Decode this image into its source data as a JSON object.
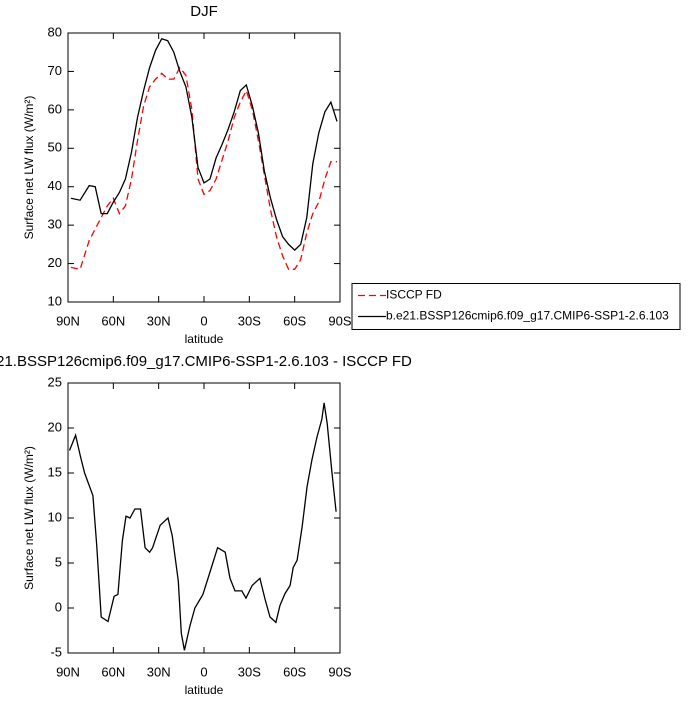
{
  "chart_data": [
    {
      "type": "line",
      "title": "DJF",
      "xlabel": "latitude",
      "ylabel": "Surface net LW flux (W/m²)",
      "xlim": [
        90,
        -90
      ],
      "ylim": [
        10,
        80
      ],
      "xticks": [
        {
          "value": 90,
          "label": "90N"
        },
        {
          "value": 60,
          "label": "60N"
        },
        {
          "value": 30,
          "label": "30N"
        },
        0,
        {
          "value": -30,
          "label": "30S"
        },
        {
          "value": -60,
          "label": "60S"
        },
        {
          "value": -90,
          "label": "90S"
        }
      ],
      "yticks": [
        10,
        20,
        30,
        40,
        50,
        60,
        70,
        80
      ],
      "x": [
        88,
        82,
        76,
        72,
        68,
        64,
        60,
        56,
        52,
        48,
        44,
        40,
        36,
        32,
        28,
        24,
        20,
        16,
        12,
        8,
        4,
        0,
        -4,
        -8,
        -12,
        -16,
        -20,
        -24,
        -28,
        -32,
        -36,
        -40,
        -44,
        -48,
        -52,
        -56,
        -60,
        -64,
        -68,
        -72,
        -76,
        -80,
        -84,
        -88
      ],
      "legend_position": "outside-right",
      "series": [
        {
          "name": "ISCCP FD",
          "color": "#ff0000",
          "line_style": "dashed",
          "values": [
            19,
            18.5,
            26,
            29,
            32,
            35,
            37,
            33,
            35,
            42,
            52,
            61,
            66,
            68,
            69.5,
            68,
            68,
            71,
            69,
            60,
            42,
            38,
            39,
            42,
            47,
            52,
            58,
            62,
            65,
            60,
            52,
            43,
            34,
            27,
            22,
            18.5,
            18.5,
            21,
            28,
            33,
            36,
            42,
            46.5,
            46.5
          ]
        },
        {
          "name": "b.e21.BSSP126cmip6.f09_g17.CMIP6-SSP1-2.6.103",
          "color": "#000000",
          "line_style": "solid",
          "values": [
            37,
            36.5,
            40.3,
            40,
            33,
            33,
            36,
            38.5,
            42,
            49,
            58,
            65,
            71,
            75.5,
            78.5,
            78,
            75,
            70,
            66,
            58,
            45,
            41,
            42,
            47.5,
            51,
            55,
            59.5,
            65,
            66.5,
            61,
            54,
            44,
            37,
            31.5,
            27,
            25,
            23.5,
            25,
            32,
            46,
            54,
            59.5,
            62,
            57
          ]
        }
      ]
    },
    {
      "type": "line",
      "title": "21.BSSP126cmip6.f09_g17.CMIP6-SSP1-2.6.103 - ISCCP FD",
      "xlabel": "latitude",
      "ylabel": "Surface net LW flux (W/m²)",
      "xlim": [
        90,
        -90
      ],
      "ylim": [
        -5,
        25
      ],
      "xticks": [
        {
          "value": 90,
          "label": "90N"
        },
        {
          "value": 60,
          "label": "60N"
        },
        {
          "value": 30,
          "label": "30N"
        },
        0,
        {
          "value": -30,
          "label": "30S"
        },
        {
          "value": -60,
          "label": "60S"
        },
        {
          "value": -90,
          "label": "90S"
        }
      ],
      "yticks": [
        -5,
        0,
        5,
        10,
        15,
        20,
        25
      ],
      "x": [
        89,
        85,
        82,
        79,
        73.5,
        71,
        68,
        63.5,
        59.5,
        57,
        54,
        51.6,
        49,
        45.7,
        42,
        39,
        36,
        34,
        29,
        23.8,
        21,
        17,
        15,
        13,
        9.3,
        6,
        0.7,
        -4,
        -9,
        -14,
        -17.2,
        -20.5,
        -25,
        -27.8,
        -31.8,
        -37,
        -40.4,
        -43.7,
        -47.6,
        -50.3,
        -53.6,
        -57,
        -59,
        -61.6,
        -64.9,
        -68.2,
        -71.5,
        -74.8,
        -78,
        -79.5,
        -81.5,
        -84.7,
        -87.4
      ],
      "series": [
        {
          "color": "#000000",
          "line_style": "solid",
          "values": [
            17.5,
            19.2,
            17,
            15,
            12.5,
            7,
            -1,
            -1.5,
            1.3,
            1.5,
            7.5,
            10.2,
            10,
            11,
            11,
            6.7,
            6.2,
            6.7,
            9.2,
            10,
            8,
            3,
            -2.8,
            -4.7,
            -2,
            0,
            1.5,
            4,
            6.7,
            6.2,
            3.3,
            1.9,
            1.9,
            1.1,
            2.5,
            3.3,
            1,
            -1,
            -1.6,
            0.3,
            1.6,
            2.5,
            4.5,
            5.3,
            9,
            13.5,
            16.5,
            19,
            21,
            22.8,
            20.5,
            15,
            10.7
          ]
        }
      ]
    }
  ]
}
